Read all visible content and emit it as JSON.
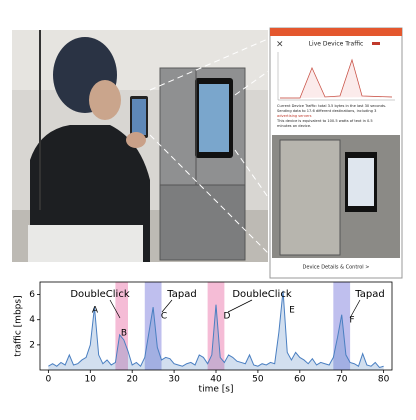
{
  "phone": {
    "header": "Live Device Traffic",
    "close": "×",
    "description": [
      "Current Device Traffic: total 3.5 bytes in the last 30 seconds.",
      "Sending data to 17.6 different destinations, including 3",
      "advertising servers",
      "This device is equivalent to 100.5 watts of text in 0.5",
      "minutes on device."
    ],
    "footer": "Device Details & Control >"
  },
  "chart_data": {
    "type": "line",
    "xlabel": "time [s]",
    "ylabel": "traffic [mbps]",
    "x": [
      0,
      1,
      2,
      3,
      4,
      5,
      6,
      7,
      8,
      9,
      10,
      11,
      12,
      13,
      14,
      15,
      16,
      17,
      18,
      19,
      20,
      21,
      22,
      23,
      24,
      25,
      26,
      27,
      28,
      29,
      30,
      31,
      32,
      33,
      34,
      35,
      36,
      37,
      38,
      39,
      40,
      41,
      42,
      43,
      44,
      45,
      46,
      47,
      48,
      49,
      50,
      51,
      52,
      53,
      54,
      55,
      56,
      57,
      58,
      59,
      60,
      61,
      62,
      63,
      64,
      65,
      66,
      67,
      68,
      69,
      70,
      71,
      72,
      73,
      74,
      75,
      76,
      77,
      78,
      79,
      80
    ],
    "series": [
      {
        "name": "traffic",
        "color": "#4a7fc1",
        "values": [
          0.3,
          0.5,
          0.3,
          0.6,
          0.4,
          1.2,
          0.4,
          0.5,
          0.8,
          1.0,
          2.0,
          5.0,
          1.2,
          0.5,
          0.8,
          0.4,
          0.6,
          2.8,
          2.4,
          1.5,
          0.4,
          0.6,
          0.3,
          1.0,
          3.0,
          5.0,
          1.8,
          0.8,
          1.0,
          0.9,
          0.5,
          0.4,
          0.3,
          0.5,
          0.6,
          0.4,
          1.2,
          1.0,
          0.5,
          1.2,
          5.2,
          1.0,
          0.6,
          1.2,
          1.0,
          0.7,
          0.6,
          0.5,
          1.2,
          0.4,
          0.3,
          0.5,
          0.4,
          0.6,
          0.5,
          3.0,
          6.3,
          1.4,
          0.8,
          1.4,
          1.0,
          0.8,
          0.5,
          0.9,
          0.4,
          0.6,
          0.5,
          0.4,
          1.0,
          2.6,
          4.4,
          1.2,
          0.6,
          0.5,
          0.3,
          1.3,
          0.4,
          0.3,
          0.6,
          0.2,
          0.3
        ]
      }
    ],
    "highlights": [
      {
        "start": 16,
        "end": 19,
        "color": "#f2a6c8"
      },
      {
        "start": 23,
        "end": 27,
        "color": "#a9a9e8"
      },
      {
        "start": 38,
        "end": 42,
        "color": "#f2a6c8"
      },
      {
        "start": 68,
        "end": 72,
        "color": "#a9a9e8"
      }
    ],
    "annotations": [
      "DoubleClick",
      "Tapad",
      "DoubleClick",
      "Tapad",
      "A",
      "B",
      "C",
      "D",
      "E",
      "F"
    ],
    "xlim": [
      -2,
      82
    ],
    "xticks": [
      0,
      10,
      20,
      30,
      40,
      50,
      60,
      70,
      80
    ],
    "ylim": [
      0,
      7
    ],
    "yticks": [
      2,
      4,
      6
    ]
  }
}
